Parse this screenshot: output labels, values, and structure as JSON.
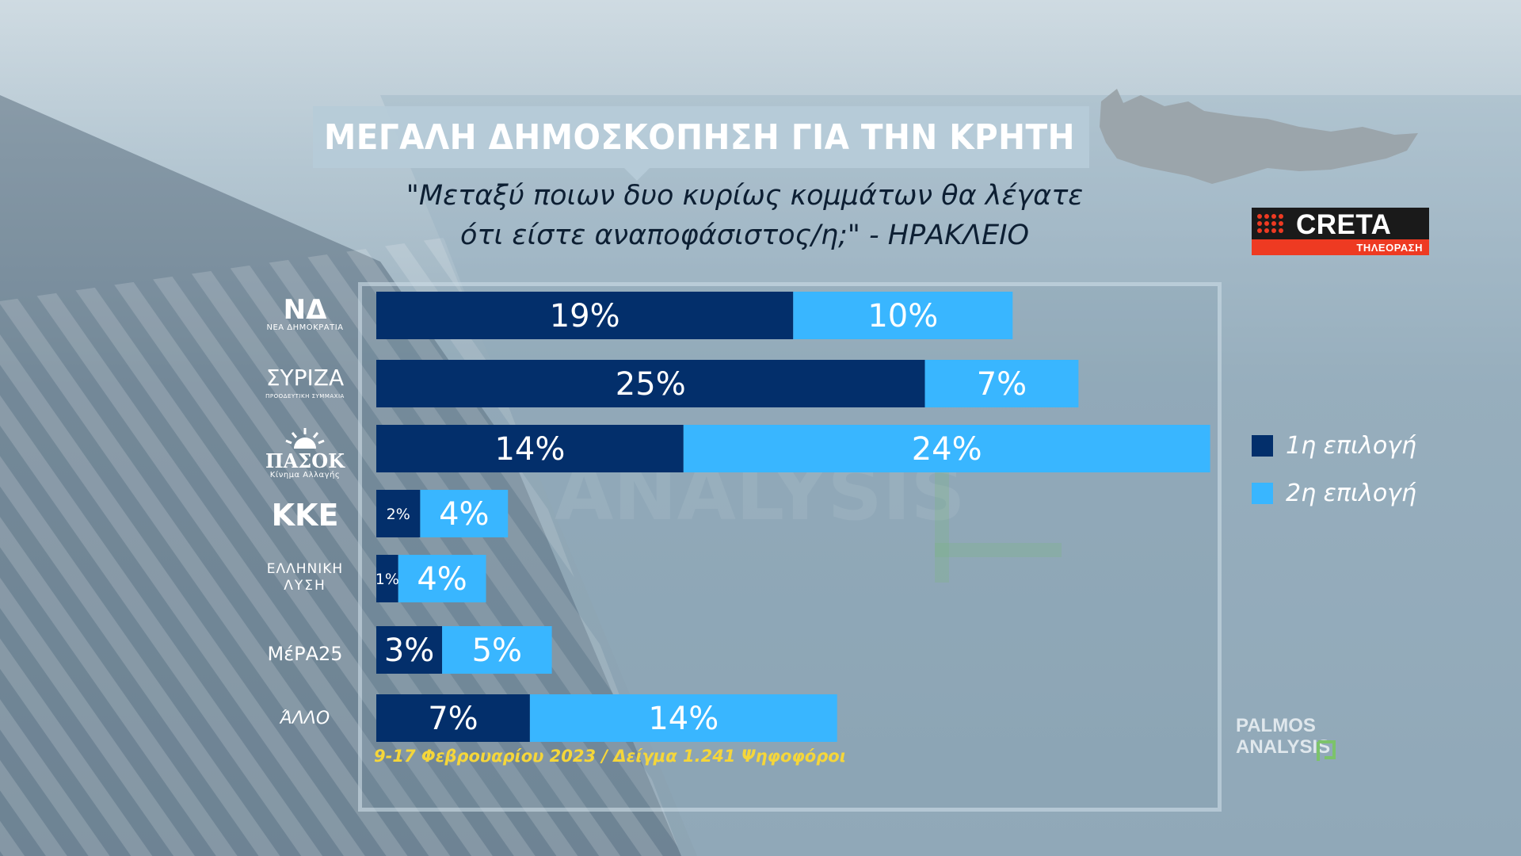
{
  "header": {
    "title": "ΜΕΓΑΛΗ ΔΗΜΟΣΚΟΠΗΣΗ ΓΙΑ ΤΗΝ ΚΡΗΤΗ",
    "question_line1": "\"Μεταξύ ποιων δυο κυρίως κομμάτων θα λέγατε",
    "question_line2": "ότι είστε αναποφάσιστος/η;\" - ΗΡΑΚΛΕΙΟ"
  },
  "branding": {
    "creta_name": "CRETA",
    "creta_sub": "ΤΗΛΕΟΡΑΣΗ",
    "palmos_line1": "PALMOS",
    "palmos_line2": "ANALYSIS"
  },
  "parties": [
    {
      "main": "ΝΔ",
      "sub": "ΝΕΑ ΔΗΜΟΚΡΑΤΙΑ"
    },
    {
      "main": "ΣΥΡΙΖΑ",
      "sub": "ΠΡΟΟΔΕΥΤΙΚΗ ΣΥΜΜΑΧΙΑ"
    },
    {
      "main": "ΠΑΣΟΚ",
      "sub": "Κίνημα Αλλαγής"
    },
    {
      "main": "ΚΚΕ",
      "sub": ""
    },
    {
      "main": "ΕΛΛΗΝΙΚΗ",
      "sub": "ΛΥΣΗ"
    },
    {
      "main": "ΜέΡΑ25",
      "sub": ""
    },
    {
      "main": "ΆΛΛΟ",
      "sub": ""
    }
  ],
  "legend": {
    "first": "1η επιλογή",
    "second": "2η επιλογή"
  },
  "footnote": "9-17 Φεβρουαρίου 2023 / Δείγμα 1.241 Ψηφοφόροι",
  "colors": {
    "first_choice": "#032f6b",
    "second_choice": "#39b6ff",
    "label_text": "#ffffff",
    "footnote": "#f5d63a",
    "creta_red": "#ee3a22"
  },
  "chart_data": {
    "type": "bar",
    "orientation": "horizontal",
    "stacked": true,
    "categories": [
      "ΝΔ",
      "ΣΥΡΙΖΑ",
      "ΠΑΣΟΚ",
      "ΚΚΕ",
      "ΕΛΛΗΝΙΚΗ ΛΥΣΗ",
      "ΜέΡΑ25",
      "ΆΛΛΟ"
    ],
    "series": [
      {
        "name": "1η επιλογή",
        "values": [
          19,
          25,
          14,
          2,
          1,
          3,
          7
        ],
        "labels": [
          "19%",
          "25%",
          "14%",
          "2%",
          "1%",
          "3%",
          "7%"
        ]
      },
      {
        "name": "2η επιλογή",
        "values": [
          10,
          7,
          24,
          4,
          4,
          5,
          14
        ],
        "labels": [
          "10%",
          "7%",
          "24%",
          "4%",
          "4%",
          "5%",
          "14%"
        ]
      }
    ],
    "xlim": [
      0,
      38
    ],
    "grid": false,
    "legend_position": "right"
  }
}
